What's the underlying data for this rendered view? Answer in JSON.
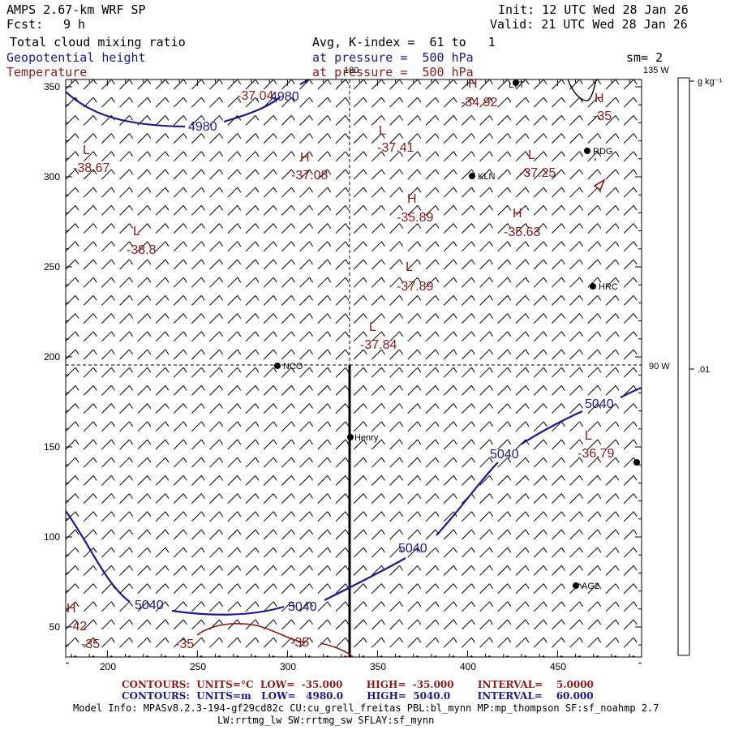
{
  "header": {
    "model": "AMPS 2.67-km WRF SP",
    "init": "Init: 12 UTC Wed 28 Jan 26",
    "fcst_label": "Fcst:",
    "fcst_value": "9 h",
    "valid": "Valid: 21 UTC Wed 28 Jan 26",
    "field1": "Total cloud mixing ratio",
    "field1_desc": "Avg, K-index =  61 to   1",
    "field2": "Geopotential height",
    "field2_desc": "at pressure =  500 hPa",
    "field3": "Temperature",
    "field3_desc": "at pressure =  500 hPa",
    "sm": "sm= 2"
  },
  "map": {
    "x_ticks": [
      "200",
      "250",
      "300",
      "350",
      "400",
      "450"
    ],
    "y_ticks": [
      "350",
      "300",
      "250",
      "200",
      "150",
      "100",
      "50"
    ],
    "lon_labels": [
      "180",
      "135 W",
      "90 W"
    ],
    "stations": [
      "LYT",
      "RDG",
      "KLN",
      "HRC",
      "NCO",
      "Henry",
      "AG2"
    ],
    "height_labels": [
      "4980",
      "4980",
      "5040",
      "5040",
      "5040",
      "5040",
      "5040"
    ],
    "temp_centers": [
      {
        "sym": "H",
        "val": "-34.92"
      },
      {
        "sym": "H",
        "val": "-35"
      },
      {
        "sym": "L",
        "val": "-37.41"
      },
      {
        "sym": "H",
        "val": "-37.08"
      },
      {
        "sym": "L",
        "val": "-37.25"
      },
      {
        "sym": "L",
        "val": "-38.67"
      },
      {
        "sym": "H",
        "val": "-35.89"
      },
      {
        "sym": "H",
        "val": "-35.63"
      },
      {
        "sym": "L",
        "val": "-38.8"
      },
      {
        "sym": "L",
        "val": "-37.89"
      },
      {
        "sym": "L",
        "val": "-37.84"
      },
      {
        "sym": "L",
        "val": "-36.79"
      },
      {
        "sym": "H",
        "val": "-42"
      }
    ],
    "temp_contour_labels": [
      "-37.04",
      "-35",
      "-35",
      "-35"
    ],
    "colorbar_unit": "g kg⁻¹",
    "colorbar_tick": ".01",
    "colors": {
      "height": "#1a1a8c",
      "temp": "#8b1a1a",
      "frame": "#000000"
    }
  },
  "footer": {
    "red_line": "CONTOURS:  UNITS=°C  LOW=  -35.000       HIGH=  -35.000       INTERVAL=    5.0000",
    "blue_line": "CONTOURS:  UNITS=m   LOW=   4980.0       HIGH=  5040.0        INTERVAL=    60.000",
    "info1": "Model Info: MPASv8.2.3-194-gf29cd82c CU:cu_grell_freitas PBL:bl_mynn MP:mp_thompson SF:sf_noahmp 2.7",
    "info2": "LW:rrtmg_lw SW:rrtmg_sw SFLAY:sf_mynn"
  }
}
